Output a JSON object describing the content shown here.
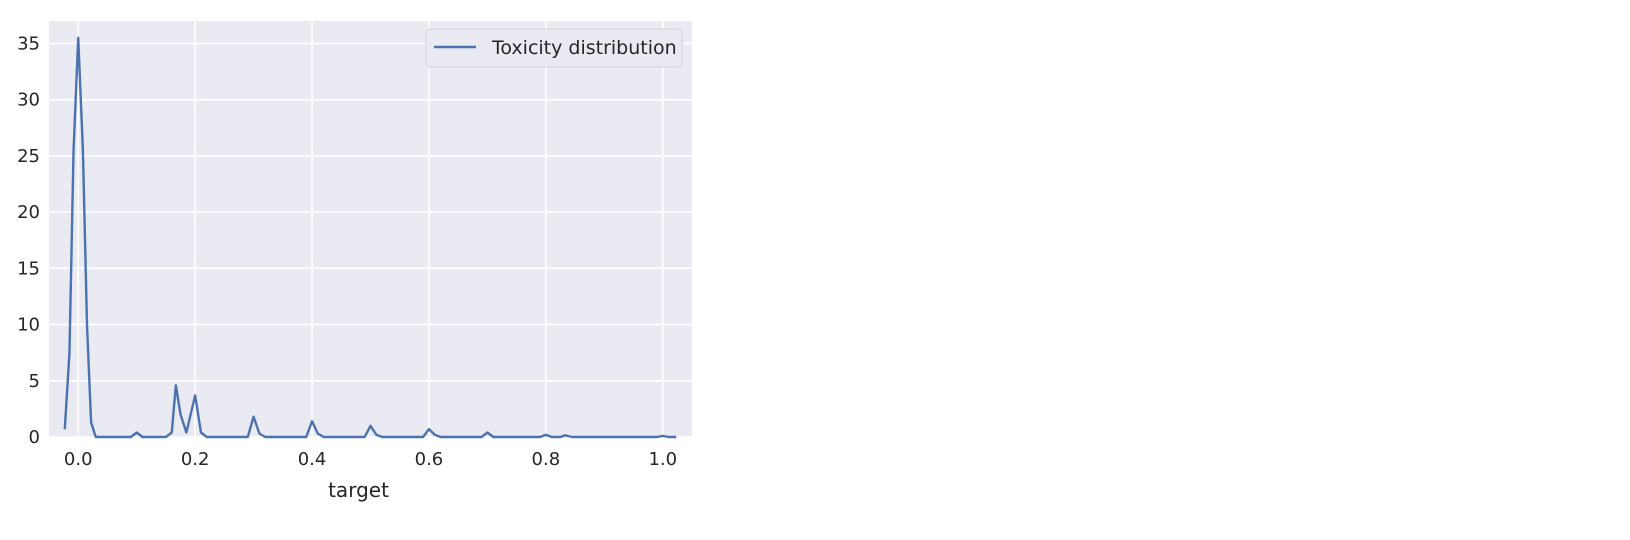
{
  "chart_data": {
    "type": "line",
    "title": "",
    "xlabel": "target",
    "ylabel": "",
    "xlim": [
      -0.05,
      1.05
    ],
    "ylim": [
      0,
      37
    ],
    "grid": true,
    "legend_placement": "top-right",
    "colors": {
      "plot_background": "#eaeaf2",
      "grid": "#ffffff",
      "series": "#4c72b0"
    },
    "x_ticks": [
      0.0,
      0.2,
      0.4,
      0.6,
      0.8,
      1.0
    ],
    "x_tick_labels": [
      "0.0",
      "0.2",
      "0.4",
      "0.6",
      "0.8",
      "1.0"
    ],
    "y_ticks": [
      0,
      5,
      10,
      15,
      20,
      25,
      30,
      35
    ],
    "y_tick_labels": [
      "0",
      "5",
      "10",
      "15",
      "20",
      "25",
      "30",
      "35"
    ],
    "series": [
      {
        "name": "Toxicity distribution",
        "x": [
          -0.023,
          -0.015,
          -0.008,
          0.0,
          0.008,
          0.015,
          0.022,
          0.03,
          0.09,
          0.1,
          0.11,
          0.15,
          0.16,
          0.167,
          0.175,
          0.185,
          0.2,
          0.21,
          0.22,
          0.29,
          0.3,
          0.31,
          0.32,
          0.39,
          0.4,
          0.41,
          0.42,
          0.49,
          0.5,
          0.51,
          0.52,
          0.59,
          0.6,
          0.61,
          0.62,
          0.69,
          0.7,
          0.71,
          0.79,
          0.8,
          0.81,
          0.825,
          0.833,
          0.845,
          0.9,
          0.99,
          1.0,
          1.01,
          1.023
        ],
        "y": [
          0.7,
          7.5,
          25.5,
          35.5,
          25.5,
          10.0,
          1.3,
          0.0,
          0.0,
          0.4,
          0.0,
          0.0,
          0.4,
          4.6,
          2.0,
          0.4,
          3.7,
          0.4,
          0.0,
          0.0,
          1.8,
          0.3,
          0.0,
          0.0,
          1.4,
          0.3,
          0.0,
          0.0,
          1.0,
          0.2,
          0.0,
          0.0,
          0.7,
          0.2,
          0.0,
          0.0,
          0.4,
          0.0,
          0.0,
          0.2,
          0.0,
          0.0,
          0.15,
          0.0,
          0.0,
          0.0,
          0.1,
          0.0,
          0.0
        ]
      }
    ]
  }
}
